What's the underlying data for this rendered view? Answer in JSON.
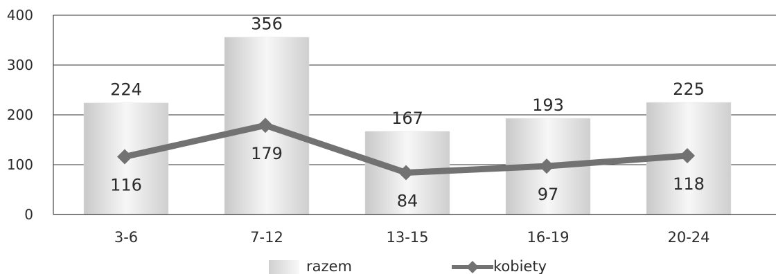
{
  "chart_data": {
    "type": "bar",
    "categories": [
      "3-6",
      "7-12",
      "13-15",
      "16-19",
      "20-24"
    ],
    "series": [
      {
        "name": "razem",
        "type": "bar",
        "values": [
          224,
          356,
          167,
          193,
          225
        ]
      },
      {
        "name": "kobiety",
        "type": "line",
        "values": [
          116,
          179,
          84,
          97,
          118
        ]
      }
    ],
    "title": "",
    "xlabel": "",
    "ylabel": "",
    "ylim": [
      0,
      400
    ],
    "yticks": [
      0,
      100,
      200,
      300,
      400
    ],
    "grid": true,
    "legend_position": "bottom",
    "colors": {
      "bar_light": "#f4f4f4",
      "bar_dark": "#c9c9c9",
      "line": "#727272",
      "grid": "#333333",
      "text": "#2b2b2b"
    }
  }
}
